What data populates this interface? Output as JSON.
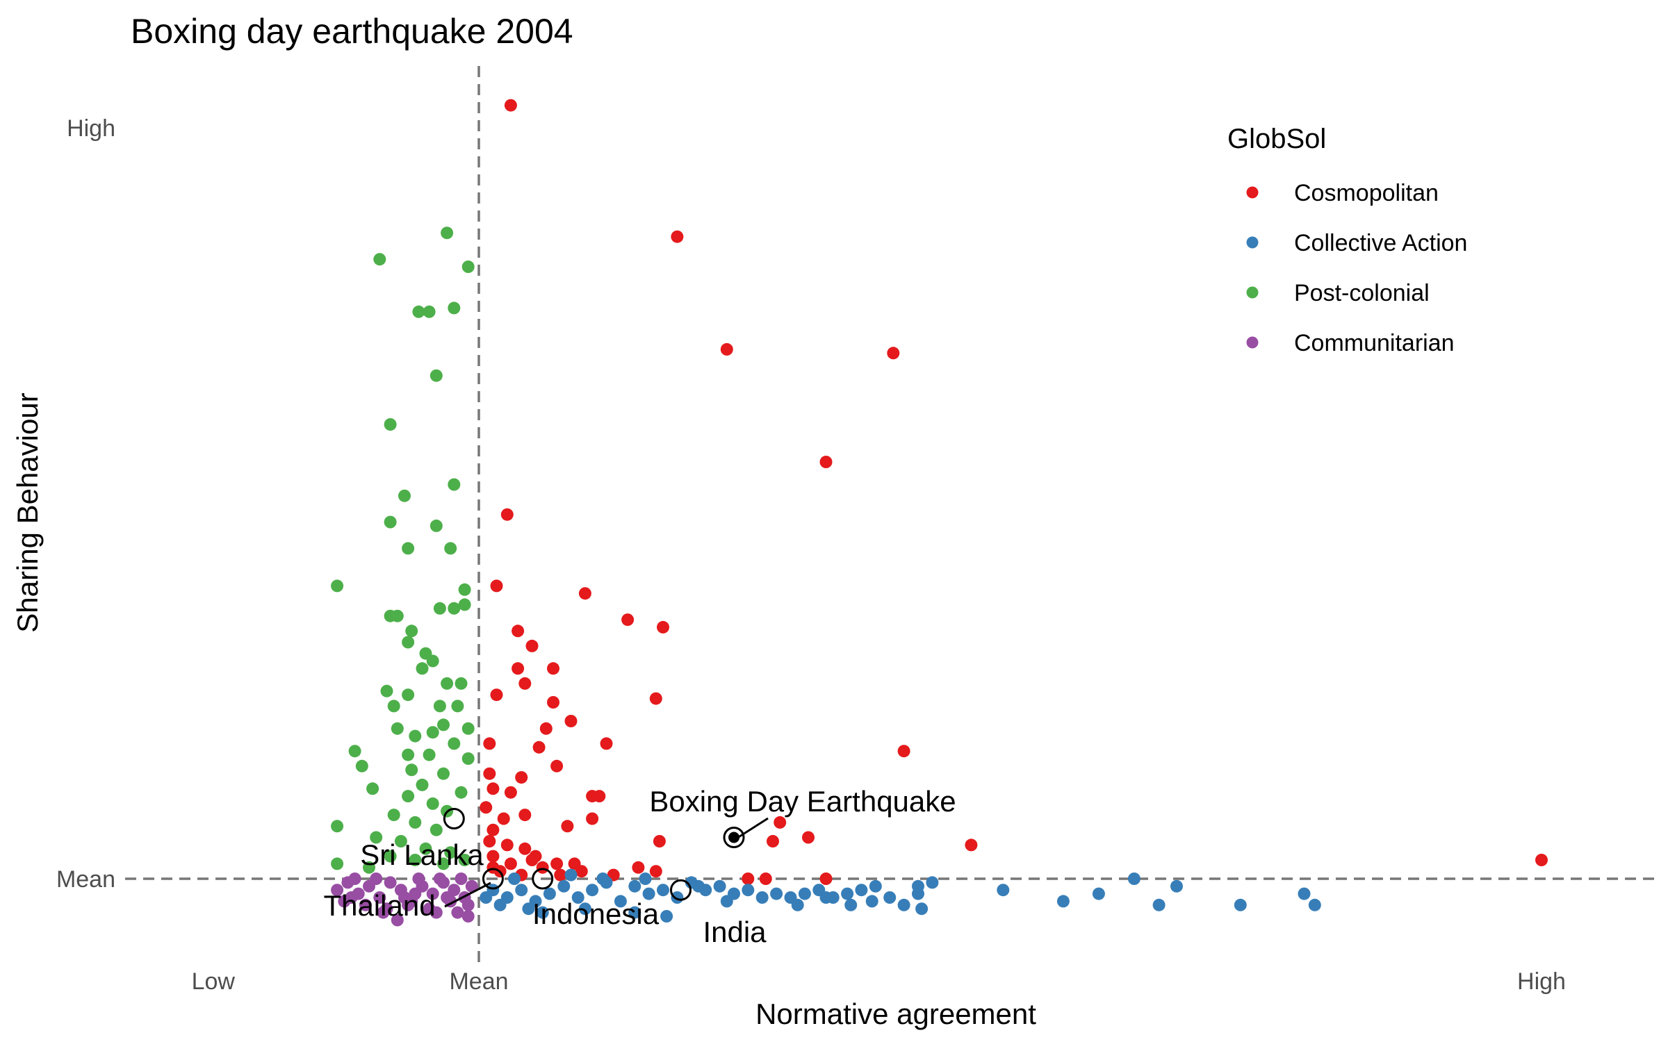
{
  "chart_data": {
    "type": "scatter",
    "title": "Boxing day earthquake 2004",
    "xlabel": "Normative agreement",
    "ylabel": "Sharing Behaviour",
    "xlim": [
      -1.15,
      3.15
    ],
    "ylim": [
      -0.2,
      2.0
    ],
    "x_ticks": [
      {
        "value": -0.75,
        "label": "Low"
      },
      {
        "value": 0,
        "label": "Mean"
      },
      {
        "value": 3,
        "label": "High"
      }
    ],
    "y_ticks": [
      {
        "value": 0,
        "label": "Mean"
      },
      {
        "value": 2,
        "label": "High"
      }
    ],
    "reference_lines": {
      "x": 0,
      "y": 0
    },
    "grid": false,
    "legend": {
      "title": "GlobSol",
      "position": "top-right"
    },
    "series": [
      {
        "name": "Cosmopolitan",
        "color": "#E41A1C",
        "points": [
          [
            0.09,
            2.06
          ],
          [
            0.56,
            1.71
          ],
          [
            0.7,
            1.41
          ],
          [
            1.17,
            1.4
          ],
          [
            0.98,
            1.11
          ],
          [
            0.08,
            0.97
          ],
          [
            0.3,
            0.76
          ],
          [
            0.05,
            0.78
          ],
          [
            0.42,
            0.69
          ],
          [
            0.52,
            0.67
          ],
          [
            0.11,
            0.66
          ],
          [
            0.15,
            0.62
          ],
          [
            0.11,
            0.56
          ],
          [
            0.21,
            0.56
          ],
          [
            0.13,
            0.52
          ],
          [
            0.5,
            0.48
          ],
          [
            0.05,
            0.49
          ],
          [
            0.26,
            0.42
          ],
          [
            0.21,
            0.47
          ],
          [
            1.2,
            0.34
          ],
          [
            0.03,
            0.36
          ],
          [
            0.17,
            0.35
          ],
          [
            0.36,
            0.36
          ],
          [
            0.22,
            0.3
          ],
          [
            0.19,
            0.4
          ],
          [
            0.03,
            0.28
          ],
          [
            0.12,
            0.27
          ],
          [
            0.09,
            0.23
          ],
          [
            0.32,
            0.22
          ],
          [
            0.04,
            0.24
          ],
          [
            0.02,
            0.19
          ],
          [
            0.13,
            0.17
          ],
          [
            0.07,
            0.16
          ],
          [
            0.25,
            0.14
          ],
          [
            0.04,
            0.13
          ],
          [
            0.32,
            0.16
          ],
          [
            0.34,
            0.22
          ],
          [
            0.85,
            0.15
          ],
          [
            0.93,
            0.11
          ],
          [
            0.83,
            0.1
          ],
          [
            0.51,
            0.1
          ],
          [
            0.03,
            0.1
          ],
          [
            0.08,
            0.09
          ],
          [
            0.13,
            0.08
          ],
          [
            0.04,
            0.06
          ],
          [
            1.39,
            0.09
          ],
          [
            0.15,
            0.05
          ],
          [
            0.22,
            0.04
          ],
          [
            0.09,
            0.04
          ],
          [
            0.27,
            0.04
          ],
          [
            0.04,
            0.03
          ],
          [
            0.18,
            0.03
          ],
          [
            0.29,
            0.02
          ],
          [
            0.45,
            0.03
          ],
          [
            0.5,
            0.02
          ],
          [
            0.76,
            0.0
          ],
          [
            0.81,
            0.0
          ],
          [
            0.98,
            0.0
          ],
          [
            0.12,
            0.01
          ],
          [
            0.23,
            0.01
          ],
          [
            0.38,
            0.01
          ],
          [
            3.0,
            0.05
          ],
          [
            0.06,
            0.02
          ],
          [
            0.16,
            0.06
          ]
        ]
      },
      {
        "name": "Collective Action",
        "color": "#377EB8",
        "points": [
          [
            0.04,
            -0.03
          ],
          [
            0.08,
            -0.05
          ],
          [
            0.12,
            -0.03
          ],
          [
            0.16,
            -0.06
          ],
          [
            0.2,
            -0.04
          ],
          [
            0.24,
            -0.02
          ],
          [
            0.28,
            -0.05
          ],
          [
            0.32,
            -0.03
          ],
          [
            0.36,
            -0.01
          ],
          [
            0.4,
            -0.06
          ],
          [
            0.44,
            -0.02
          ],
          [
            0.48,
            -0.04
          ],
          [
            0.52,
            -0.03
          ],
          [
            0.56,
            -0.05
          ],
          [
            0.6,
            -0.01
          ],
          [
            0.64,
            -0.03
          ],
          [
            0.68,
            -0.02
          ],
          [
            0.72,
            -0.04
          ],
          [
            0.76,
            -0.03
          ],
          [
            0.8,
            -0.05
          ],
          [
            0.84,
            -0.04
          ],
          [
            0.88,
            -0.05
          ],
          [
            0.92,
            -0.04
          ],
          [
            0.96,
            -0.03
          ],
          [
            1.0,
            -0.05
          ],
          [
            1.04,
            -0.04
          ],
          [
            1.08,
            -0.03
          ],
          [
            1.12,
            -0.02
          ],
          [
            1.16,
            -0.05
          ],
          [
            1.2,
            -0.07
          ],
          [
            1.24,
            -0.04
          ],
          [
            1.28,
            -0.01
          ],
          [
            1.48,
            -0.03
          ],
          [
            1.65,
            -0.06
          ],
          [
            1.75,
            -0.04
          ],
          [
            1.85,
            0.0
          ],
          [
            1.92,
            -0.07
          ],
          [
            1.97,
            -0.02
          ],
          [
            2.15,
            -0.07
          ],
          [
            2.33,
            -0.04
          ],
          [
            2.36,
            -0.07
          ],
          [
            0.06,
            -0.07
          ],
          [
            0.14,
            -0.08
          ],
          [
            0.3,
            -0.08
          ],
          [
            0.44,
            -0.09
          ],
          [
            0.53,
            -0.1
          ],
          [
            0.7,
            -0.06
          ],
          [
            0.9,
            -0.07
          ],
          [
            1.05,
            -0.07
          ],
          [
            1.25,
            -0.08
          ],
          [
            0.1,
            0.0
          ],
          [
            0.26,
            0.01
          ],
          [
            0.35,
            0.0
          ],
          [
            0.47,
            0.0
          ],
          [
            0.62,
            -0.02
          ],
          [
            0.98,
            -0.05
          ],
          [
            1.11,
            -0.06
          ],
          [
            1.24,
            -0.02
          ],
          [
            0.02,
            -0.05
          ],
          [
            0.18,
            -0.09
          ]
        ]
      },
      {
        "name": "Post-colonial",
        "color": "#4DAF4A",
        "points": [
          [
            -0.09,
            1.72
          ],
          [
            -0.28,
            1.65
          ],
          [
            -0.03,
            1.63
          ],
          [
            -0.17,
            1.51
          ],
          [
            -0.14,
            1.51
          ],
          [
            -0.07,
            1.52
          ],
          [
            -0.12,
            1.34
          ],
          [
            -0.25,
            1.21
          ],
          [
            -0.21,
            1.02
          ],
          [
            -0.07,
            1.05
          ],
          [
            -0.25,
            0.95
          ],
          [
            -0.2,
            0.88
          ],
          [
            -0.12,
            0.94
          ],
          [
            -0.08,
            0.88
          ],
          [
            -0.4,
            0.78
          ],
          [
            -0.04,
            0.77
          ],
          [
            -0.11,
            0.72
          ],
          [
            -0.25,
            0.7
          ],
          [
            -0.23,
            0.7
          ],
          [
            -0.19,
            0.66
          ],
          [
            -0.07,
            0.72
          ],
          [
            -0.04,
            0.73
          ],
          [
            -0.2,
            0.63
          ],
          [
            -0.15,
            0.6
          ],
          [
            -0.13,
            0.58
          ],
          [
            -0.16,
            0.56
          ],
          [
            -0.05,
            0.52
          ],
          [
            -0.09,
            0.52
          ],
          [
            -0.26,
            0.5
          ],
          [
            -0.2,
            0.49
          ],
          [
            -0.11,
            0.46
          ],
          [
            -0.24,
            0.46
          ],
          [
            -0.06,
            0.46
          ],
          [
            -0.23,
            0.4
          ],
          [
            -0.1,
            0.41
          ],
          [
            -0.03,
            0.4
          ],
          [
            -0.13,
            0.39
          ],
          [
            -0.18,
            0.38
          ],
          [
            -0.35,
            0.34
          ],
          [
            -0.07,
            0.36
          ],
          [
            -0.2,
            0.33
          ],
          [
            -0.14,
            0.33
          ],
          [
            -0.03,
            0.32
          ],
          [
            -0.33,
            0.3
          ],
          [
            -0.19,
            0.29
          ],
          [
            -0.1,
            0.28
          ],
          [
            -0.3,
            0.24
          ],
          [
            -0.16,
            0.25
          ],
          [
            -0.05,
            0.23
          ],
          [
            -0.2,
            0.22
          ],
          [
            -0.13,
            0.2
          ],
          [
            -0.09,
            0.18
          ],
          [
            -0.4,
            0.14
          ],
          [
            -0.24,
            0.17
          ],
          [
            -0.18,
            0.15
          ],
          [
            -0.12,
            0.13
          ],
          [
            -0.29,
            0.11
          ],
          [
            -0.22,
            0.1
          ],
          [
            -0.15,
            0.08
          ],
          [
            -0.08,
            0.07
          ],
          [
            -0.25,
            0.06
          ],
          [
            -0.18,
            0.05
          ],
          [
            -0.1,
            0.04
          ],
          [
            -0.04,
            0.05
          ],
          [
            -0.4,
            0.04
          ],
          [
            -0.31,
            0.03
          ]
        ]
      },
      {
        "name": "Communitarian",
        "color": "#984EA3",
        "points": [
          [
            -0.4,
            -0.03
          ],
          [
            -0.37,
            -0.01
          ],
          [
            -0.34,
            -0.04
          ],
          [
            -0.31,
            -0.02
          ],
          [
            -0.28,
            -0.05
          ],
          [
            -0.25,
            -0.01
          ],
          [
            -0.22,
            -0.03
          ],
          [
            -0.19,
            -0.06
          ],
          [
            -0.16,
            -0.02
          ],
          [
            -0.13,
            -0.04
          ],
          [
            -0.1,
            -0.01
          ],
          [
            -0.07,
            -0.03
          ],
          [
            -0.04,
            -0.05
          ],
          [
            -0.02,
            -0.02
          ],
          [
            -0.38,
            -0.06
          ],
          [
            -0.32,
            -0.07
          ],
          [
            -0.26,
            -0.08
          ],
          [
            -0.2,
            -0.07
          ],
          [
            -0.14,
            -0.08
          ],
          [
            -0.08,
            -0.06
          ],
          [
            -0.03,
            -0.07
          ],
          [
            -0.23,
            -0.11
          ],
          [
            -0.03,
            -0.1
          ],
          [
            -0.35,
            0.0
          ],
          [
            -0.29,
            0.0
          ],
          [
            -0.17,
            0.0
          ],
          [
            -0.11,
            0.0
          ],
          [
            -0.05,
            0.0
          ],
          [
            -0.36,
            -0.05
          ],
          [
            -0.18,
            -0.04
          ],
          [
            -0.12,
            -0.09
          ],
          [
            -0.27,
            -0.09
          ],
          [
            -0.06,
            -0.09
          ],
          [
            -0.21,
            -0.05
          ],
          [
            -0.09,
            -0.05
          ]
        ]
      }
    ],
    "annotations": [
      {
        "label": "Boxing Day Earthquake",
        "x": 0.72,
        "y": 0.11,
        "filled": true
      },
      {
        "label": "Sri Lanka",
        "x": -0.07,
        "y": 0.16,
        "filled": false
      },
      {
        "label": "Thailand",
        "x": 0.04,
        "y": 0.0,
        "filled": false
      },
      {
        "label": "Indonesia",
        "x": 0.18,
        "y": 0.0,
        "filled": false
      },
      {
        "label": "India",
        "x": 0.57,
        "y": -0.03,
        "filled": false
      }
    ]
  }
}
